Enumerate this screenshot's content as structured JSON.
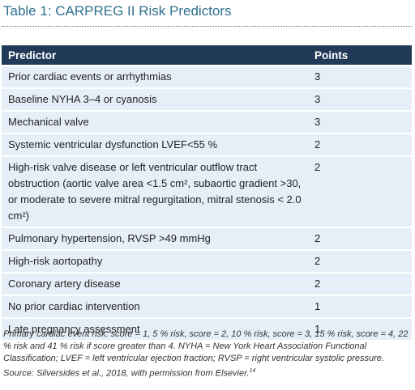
{
  "title": "Table 1: CARPREG II Risk Predictors",
  "table": {
    "header": [
      "Predictor",
      "Points"
    ],
    "rows": [
      [
        "Prior cardiac events or arrhythmias",
        "3"
      ],
      [
        "Baseline NYHA 3–4 or cyanosis",
        "3"
      ],
      [
        "Mechanical valve",
        "3"
      ],
      [
        "Systemic ventricular dysfunction LVEF<55 %",
        "2"
      ],
      [
        "High-risk valve disease or left ventricular outflow tract obstruction (aortic valve area <1.5 cm², subaortic gradient >30, or moderate to severe mitral regurgitation, mitral stenosis < 2.0 cm²)",
        "2"
      ],
      [
        "Pulmonary hypertension, RVSP >49 mmHg",
        "2"
      ],
      [
        "High-risk aortopathy",
        "2"
      ],
      [
        "Coronary artery disease",
        "2"
      ],
      [
        "No prior cardiac intervention",
        "1"
      ],
      [
        "Late pregnancy assessment",
        "1"
      ]
    ]
  },
  "footnote": {
    "text": "Primary cardiac event risk: score = 1, 5 % risk, score = 2, 10 % risk, score = 3, 15 % risk, score = 4, 22 % risk and 41 % risk if score greater than 4. NYHA = New York Heart Association Functional Classification; LVEF = left ventricular ejection fraction; RVSP = right ventricular systolic pressure. Source: Silversides et al., 2018, with permission from Elsevier.",
    "ref": "14"
  }
}
